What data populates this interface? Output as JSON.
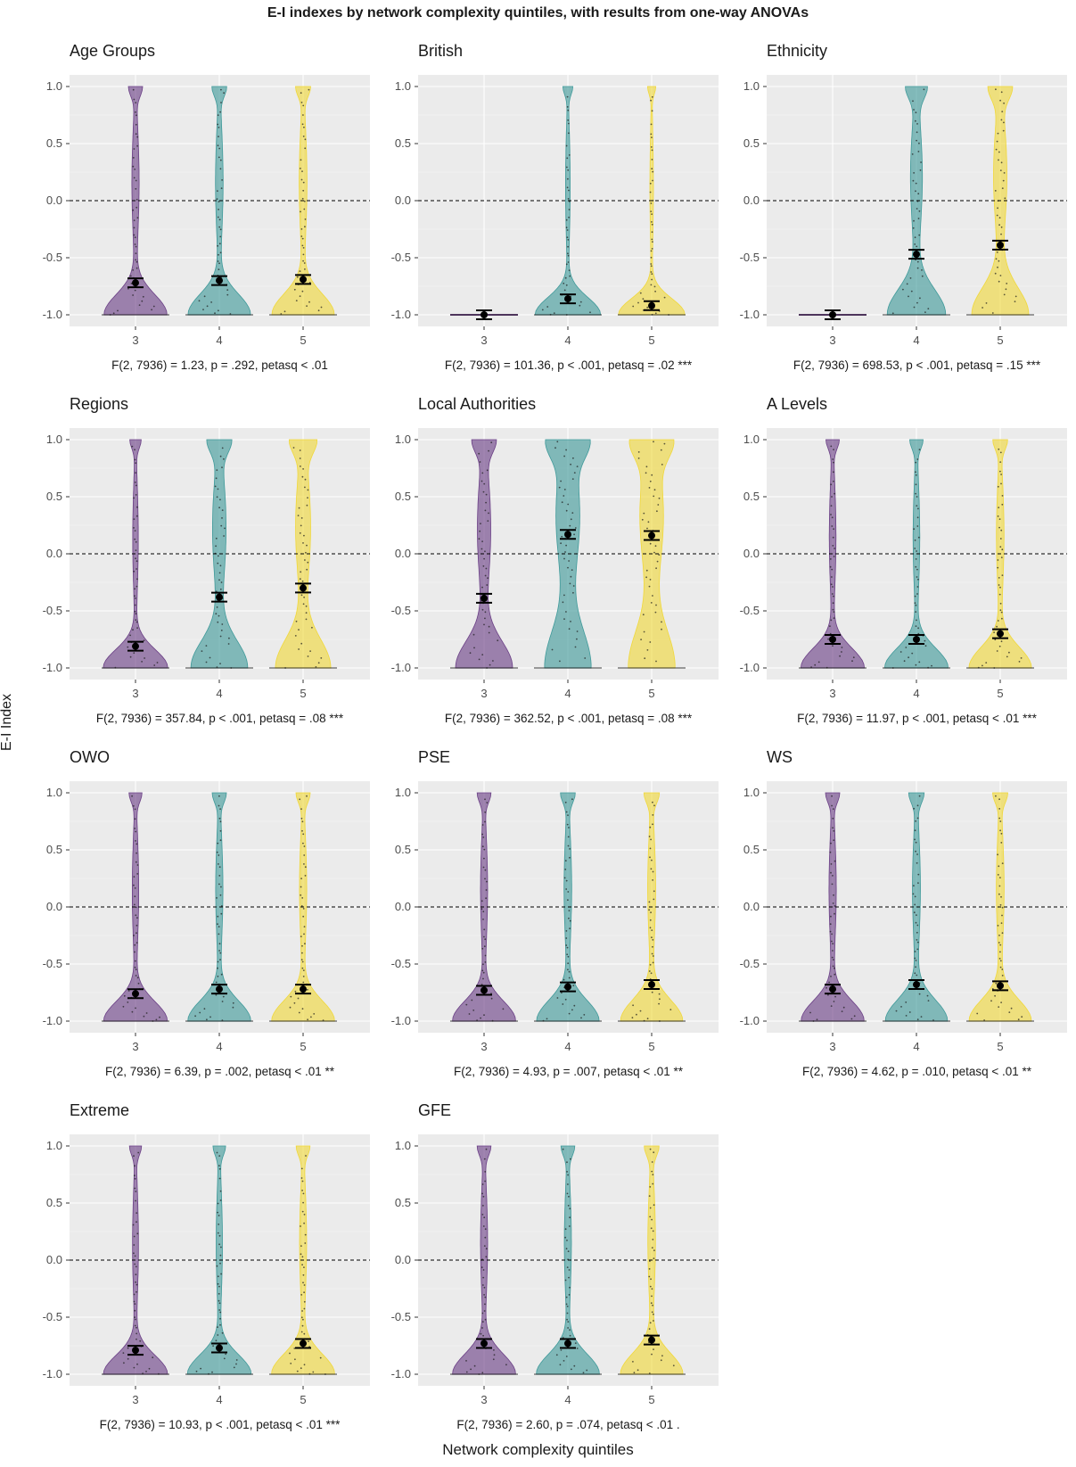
{
  "title": "E-I indexes by network complexity quintiles, with results from one-way ANOVAs",
  "xlabel": "Network complexity quintiles",
  "ylabel": "E-I Index",
  "colors": {
    "q3": "#6b3f86",
    "q4": "#3f9a9a",
    "q5": "#f0d83a",
    "panel_bg": "#ebebeb",
    "grid": "#ffffff",
    "mean": "#000000"
  },
  "chart_data": {
    "type": "violin",
    "categories": [
      "3",
      "4",
      "5"
    ],
    "ylim": [
      -1.0,
      1.0
    ],
    "yticks": [
      "1.0",
      "0.5",
      "0.0",
      "-0.5",
      "-1.0"
    ],
    "reference_line": {
      "y": 0.0,
      "style": "dashed"
    },
    "grid": true,
    "panels": [
      {
        "name": "Age Groups",
        "means": [
          -0.72,
          -0.7,
          -0.69
        ],
        "anova": "F(2, 7936) =  1.23, p = .292, petasq < .01"
      },
      {
        "name": "British",
        "means": [
          -1.0,
          -0.86,
          -0.92
        ],
        "anova": "F(2, 7936) =   101.36, p < .001, petasq = .02 ***"
      },
      {
        "name": "Ethnicity",
        "means": [
          -1.0,
          -0.47,
          -0.39
        ],
        "anova": "F(2, 7936) =  698.53, p < .001, petasq = .15 ***"
      },
      {
        "name": "Regions",
        "means": [
          -0.81,
          -0.38,
          -0.3
        ],
        "anova": "F(2, 7936) =  357.84, p < .001, petasq = .08 ***"
      },
      {
        "name": "Local Authorities",
        "means": [
          -0.39,
          0.17,
          0.16
        ],
        "anova": "F(2, 7936) = 362.52, p < .001, petasq = .08 ***"
      },
      {
        "name": "A Levels",
        "means": [
          -0.75,
          -0.75,
          -0.7
        ],
        "anova": "F(2, 7936) = 11.97, p < .001, petasq < .01 ***"
      },
      {
        "name": "OWO",
        "means": [
          -0.76,
          -0.72,
          -0.72
        ],
        "anova": "F(2, 7936) =  6.39, p = .002, petasq < .01 **"
      },
      {
        "name": "PSE",
        "means": [
          -0.73,
          -0.7,
          -0.68
        ],
        "anova": "F(2, 7936) =  4.93, p = .007, petasq < .01 **"
      },
      {
        "name": "WS",
        "means": [
          -0.72,
          -0.68,
          -0.69
        ],
        "anova": "F(2, 7936) =  4.62, p = .010, petasq < .01 **"
      },
      {
        "name": "Extreme",
        "means": [
          -0.79,
          -0.77,
          -0.73
        ],
        "anova": "F(2, 7936) = 10.93, p < .001, petasq < .01 ***"
      },
      {
        "name": "GFE",
        "means": [
          -0.73,
          -0.73,
          -0.7
        ],
        "anova": "F(2, 7936) =  2.60, p = .074, petasq < .01 ."
      }
    ]
  }
}
